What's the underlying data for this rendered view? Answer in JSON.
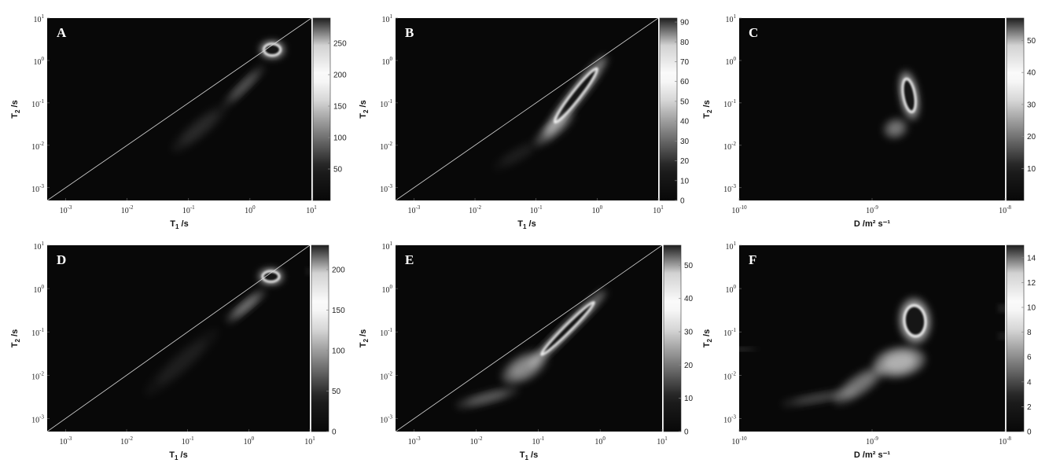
{
  "chart_data": [
    {
      "panel": "A",
      "type": "heatmap",
      "xlabel_main": "T",
      "xlabel_sub": "1",
      "xlabel_unit": " /s",
      "ylabel_main": "T",
      "ylabel_sub": "2",
      "ylabel_unit": " /s",
      "x_scale": "log",
      "y_scale": "log",
      "xlim": [
        0.0005,
        10
      ],
      "ylim": [
        0.0005,
        10
      ],
      "x_ticks": [
        0.001,
        0.01,
        0.1,
        1,
        10
      ],
      "x_tick_labels": [
        {
          "base": "10",
          "exp": "-3"
        },
        {
          "base": "10",
          "exp": "-2"
        },
        {
          "base": "10",
          "exp": "-1"
        },
        {
          "base": "10",
          "exp": "0"
        },
        {
          "base": "10",
          "exp": "1"
        }
      ],
      "y_ticks": [
        0.001,
        0.01,
        0.1,
        1,
        10
      ],
      "y_tick_labels": [
        {
          "base": "10",
          "exp": "-3"
        },
        {
          "base": "10",
          "exp": "-2"
        },
        {
          "base": "10",
          "exp": "-1"
        },
        {
          "base": "10",
          "exp": "0"
        },
        {
          "base": "10",
          "exp": "1"
        }
      ],
      "diagonal": true,
      "colorbar": {
        "min": 0,
        "max": 290,
        "ticks": [
          50,
          100,
          150,
          200,
          250
        ],
        "tick_labels": [
          "50",
          "100",
          "150",
          "200",
          "250"
        ]
      },
      "peaks": [
        {
          "x": 2.3,
          "y": 1.8,
          "sx": 0.17,
          "sy": 0.17,
          "rot": 0,
          "amp": 1.0,
          "ring": true
        },
        {
          "x": 0.8,
          "y": 0.25,
          "sx": 0.4,
          "sy": 0.1,
          "rot": 45,
          "amp": 0.35
        },
        {
          "x": 0.15,
          "y": 0.025,
          "sx": 0.5,
          "sy": 0.18,
          "rot": 40,
          "amp": 0.12
        }
      ]
    },
    {
      "panel": "B",
      "type": "heatmap",
      "xlabel_main": "T",
      "xlabel_sub": "1",
      "xlabel_unit": " /s",
      "ylabel_main": "T",
      "ylabel_sub": "2",
      "ylabel_unit": " /s",
      "x_scale": "log",
      "y_scale": "log",
      "xlim": [
        0.0005,
        10
      ],
      "ylim": [
        0.0005,
        10
      ],
      "x_ticks": [
        0.001,
        0.01,
        0.1,
        1,
        10
      ],
      "x_tick_labels": [
        {
          "base": "10",
          "exp": "-3"
        },
        {
          "base": "10",
          "exp": "-2"
        },
        {
          "base": "10",
          "exp": "-1"
        },
        {
          "base": "10",
          "exp": "0"
        },
        {
          "base": "10",
          "exp": "1"
        }
      ],
      "y_ticks": [
        0.001,
        0.01,
        0.1,
        1,
        10
      ],
      "y_tick_labels": [
        {
          "base": "10",
          "exp": "-3"
        },
        {
          "base": "10",
          "exp": "-2"
        },
        {
          "base": "10",
          "exp": "-1"
        },
        {
          "base": "10",
          "exp": "0"
        },
        {
          "base": "10",
          "exp": "1"
        }
      ],
      "diagonal": true,
      "colorbar": {
        "min": 0,
        "max": 92,
        "ticks": [
          0,
          10,
          20,
          30,
          40,
          50,
          60,
          70,
          80,
          90
        ],
        "tick_labels": [
          "0",
          "10",
          "20",
          "30",
          "40",
          "50",
          "60",
          "70",
          "80",
          "90"
        ]
      },
      "peaks": [
        {
          "x": 0.45,
          "y": 0.15,
          "sx": 0.7,
          "sy": 0.13,
          "rot": 52,
          "amp": 1.0,
          "ring": true
        },
        {
          "x": 0.2,
          "y": 0.025,
          "sx": 0.35,
          "sy": 0.15,
          "rot": 40,
          "amp": 0.45
        },
        {
          "x": 0.05,
          "y": 0.006,
          "sx": 0.4,
          "sy": 0.15,
          "rot": 30,
          "amp": 0.08
        }
      ]
    },
    {
      "panel": "C",
      "type": "heatmap",
      "xlabel_main": "D",
      "xlabel_sub": "",
      "xlabel_unit": " /m² s⁻¹",
      "ylabel_main": "T",
      "ylabel_sub": "2",
      "ylabel_unit": " /s",
      "x_scale": "log",
      "y_scale": "log",
      "xlim": [
        1e-10,
        1e-08
      ],
      "ylim": [
        0.0005,
        10
      ],
      "x_ticks": [
        1e-10,
        1e-09,
        1e-08
      ],
      "x_tick_labels": [
        {
          "base": "10",
          "exp": "-10"
        },
        {
          "base": "10",
          "exp": "-9"
        },
        {
          "base": "10",
          "exp": "-8"
        }
      ],
      "y_ticks": [
        0.001,
        0.01,
        0.1,
        1,
        10
      ],
      "y_tick_labels": [
        {
          "base": "10",
          "exp": "-3"
        },
        {
          "base": "10",
          "exp": "-2"
        },
        {
          "base": "10",
          "exp": "-1"
        },
        {
          "base": "10",
          "exp": "0"
        },
        {
          "base": "10",
          "exp": "1"
        }
      ],
      "diagonal": false,
      "colorbar": {
        "min": 0,
        "max": 57,
        "ticks": [
          10,
          20,
          30,
          40,
          50
        ],
        "tick_labels": [
          "10",
          "20",
          "30",
          "40",
          "50"
        ]
      },
      "peaks": [
        {
          "x": 1.9e-09,
          "y": 0.15,
          "sx": 0.055,
          "sy": 0.5,
          "rot": 10,
          "amp": 1.0,
          "ring": true
        },
        {
          "x": 1.5e-09,
          "y": 0.025,
          "sx": 0.08,
          "sy": 0.2,
          "rot": 20,
          "amp": 0.45
        }
      ]
    },
    {
      "panel": "D",
      "type": "heatmap",
      "xlabel_main": "T",
      "xlabel_sub": "1",
      "xlabel_unit": " /s",
      "ylabel_main": "T",
      "ylabel_sub": "2",
      "ylabel_unit": " /s",
      "x_scale": "log",
      "y_scale": "log",
      "xlim": [
        0.0005,
        10
      ],
      "ylim": [
        0.0005,
        10
      ],
      "x_ticks": [
        0.001,
        0.01,
        0.1,
        1,
        10
      ],
      "x_tick_labels": [
        {
          "base": "10",
          "exp": "-3"
        },
        {
          "base": "10",
          "exp": "-2"
        },
        {
          "base": "10",
          "exp": "-1"
        },
        {
          "base": "10",
          "exp": "0"
        },
        {
          "base": "10",
          "exp": "1"
        }
      ],
      "y_ticks": [
        0.001,
        0.01,
        0.1,
        1,
        10
      ],
      "y_tick_labels": [
        {
          "base": "10",
          "exp": "-3"
        },
        {
          "base": "10",
          "exp": "-2"
        },
        {
          "base": "10",
          "exp": "-1"
        },
        {
          "base": "10",
          "exp": "0"
        },
        {
          "base": "10",
          "exp": "1"
        }
      ],
      "diagonal": true,
      "colorbar": {
        "min": 0,
        "max": 230,
        "ticks": [
          0,
          50,
          100,
          150,
          200
        ],
        "tick_labels": [
          "0",
          "50",
          "100",
          "150",
          "200"
        ]
      },
      "peaks": [
        {
          "x": 2.3,
          "y": 1.9,
          "sx": 0.17,
          "sy": 0.15,
          "rot": 0,
          "amp": 1.0,
          "ring": true
        },
        {
          "x": 0.9,
          "y": 0.4,
          "sx": 0.35,
          "sy": 0.1,
          "rot": 40,
          "amp": 0.5
        },
        {
          "x": 0.08,
          "y": 0.02,
          "sx": 0.7,
          "sy": 0.2,
          "rot": 42,
          "amp": 0.08
        },
        {
          "x": 9.5,
          "y": 2.5,
          "sx": 0.03,
          "sy": 0.05,
          "rot": 0,
          "amp": 0.35
        }
      ]
    },
    {
      "panel": "E",
      "type": "heatmap",
      "xlabel_main": "T",
      "xlabel_sub": "1",
      "xlabel_unit": " /s",
      "ylabel_main": "T",
      "ylabel_sub": "2",
      "ylabel_unit": " /s",
      "x_scale": "log",
      "y_scale": "log",
      "xlim": [
        0.0005,
        10
      ],
      "ylim": [
        0.0005,
        10
      ],
      "x_ticks": [
        0.001,
        0.01,
        0.1,
        1,
        10
      ],
      "x_tick_labels": [
        {
          "base": "10",
          "exp": "-3"
        },
        {
          "base": "10",
          "exp": "-2"
        },
        {
          "base": "10",
          "exp": "-1"
        },
        {
          "base": "10",
          "exp": "0"
        },
        {
          "base": "10",
          "exp": "1"
        }
      ],
      "y_ticks": [
        0.001,
        0.01,
        0.1,
        1,
        10
      ],
      "y_tick_labels": [
        {
          "base": "10",
          "exp": "-3"
        },
        {
          "base": "10",
          "exp": "-2"
        },
        {
          "base": "10",
          "exp": "-1"
        },
        {
          "base": "10",
          "exp": "0"
        },
        {
          "base": "10",
          "exp": "1"
        }
      ],
      "diagonal": true,
      "colorbar": {
        "min": 0,
        "max": 56,
        "ticks": [
          0,
          10,
          20,
          30,
          40,
          50
        ],
        "tick_labels": [
          "0",
          "10",
          "20",
          "30",
          "40",
          "50"
        ]
      },
      "peaks": [
        {
          "x": 0.3,
          "y": 0.12,
          "sx": 0.75,
          "sy": 0.1,
          "rot": 45,
          "amp": 1.0,
          "ring": true
        },
        {
          "x": 0.06,
          "y": 0.015,
          "sx": 0.35,
          "sy": 0.25,
          "rot": 30,
          "amp": 0.55
        },
        {
          "x": 0.015,
          "y": 0.003,
          "sx": 0.45,
          "sy": 0.12,
          "rot": 15,
          "amp": 0.35
        }
      ]
    },
    {
      "panel": "F",
      "type": "heatmap",
      "xlabel_main": "D",
      "xlabel_sub": "",
      "xlabel_unit": " /m² s⁻¹",
      "ylabel_main": "T",
      "ylabel_sub": "2",
      "ylabel_unit": " /s",
      "x_scale": "log",
      "y_scale": "log",
      "xlim": [
        1e-10,
        1e-08
      ],
      "ylim": [
        0.0005,
        10
      ],
      "x_ticks": [
        1e-10,
        1e-09,
        1e-08
      ],
      "x_tick_labels": [
        {
          "base": "10",
          "exp": "-10"
        },
        {
          "base": "10",
          "exp": "-9"
        },
        {
          "base": "10",
          "exp": "-8"
        }
      ],
      "y_ticks": [
        0.001,
        0.01,
        0.1,
        1,
        10
      ],
      "y_tick_labels": [
        {
          "base": "10",
          "exp": "-3"
        },
        {
          "base": "10",
          "exp": "-2"
        },
        {
          "base": "10",
          "exp": "-1"
        },
        {
          "base": "10",
          "exp": "0"
        },
        {
          "base": "10",
          "exp": "1"
        }
      ],
      "diagonal": false,
      "colorbar": {
        "min": 0,
        "max": 15,
        "ticks": [
          0,
          2,
          4,
          6,
          8,
          10,
          12,
          14
        ],
        "tick_labels": [
          "0",
          "2",
          "4",
          "6",
          "8",
          "10",
          "12",
          "14"
        ]
      },
      "peaks": [
        {
          "x": 2.1e-09,
          "y": 0.18,
          "sx": 0.1,
          "sy": 0.45,
          "rot": 5,
          "amp": 1.0,
          "ring": true
        },
        {
          "x": 1.6e-09,
          "y": 0.02,
          "sx": 0.17,
          "sy": 0.3,
          "rot": 10,
          "amp": 0.75
        },
        {
          "x": 8e-10,
          "y": 0.006,
          "sx": 0.2,
          "sy": 0.2,
          "rot": 35,
          "amp": 0.45
        },
        {
          "x": 4e-10,
          "y": 0.003,
          "sx": 0.25,
          "sy": 0.1,
          "rot": 10,
          "amp": 0.25
        },
        {
          "x": 1e-10,
          "y": 0.04,
          "sx": 0.12,
          "sy": 0.03,
          "rot": 0,
          "amp": 0.3
        },
        {
          "x": 9.6e-09,
          "y": 0.35,
          "sx": 0.025,
          "sy": 0.06,
          "rot": 0,
          "amp": 0.35
        },
        {
          "x": 9.6e-09,
          "y": 0.08,
          "sx": 0.025,
          "sy": 0.05,
          "rot": 0,
          "amp": 0.3
        }
      ]
    }
  ]
}
